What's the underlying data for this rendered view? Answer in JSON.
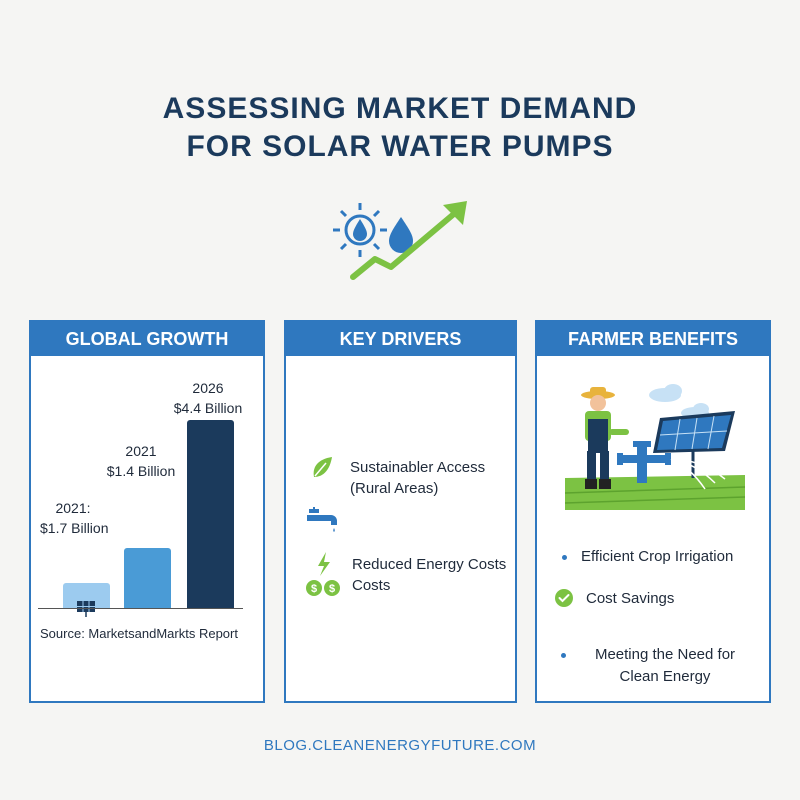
{
  "title": {
    "line1": "ASSESSING MARKET DEMAND",
    "line2": "FOR SOLAR WATER PUMPS"
  },
  "hero_icons": [
    "sun-icon",
    "water-drop-icon",
    "growth-arrow-icon"
  ],
  "panels": {
    "global_growth": {
      "header": "GLOBAL GROWTH",
      "bars": [
        {
          "year": "2021:",
          "value_label": "$1.7 Billion",
          "color": "#9ccbef"
        },
        {
          "year": "2021",
          "value_label": "$1.4 Billion",
          "color": "#4a9bd6"
        },
        {
          "year": "2026",
          "value_label": "$4.4 Billion",
          "color": "#1b3a5c"
        }
      ],
      "chart_values": [
        1.7,
        1.4,
        4.4
      ],
      "source": "Source: MarketsandMarkts Report"
    },
    "key_drivers": {
      "header": "KEY DRIVERS",
      "items": [
        {
          "line1": "Sustainabler Access",
          "line2": "(Rural Areas)",
          "icon": "leaf-icon"
        },
        {
          "line1": "",
          "line2": "",
          "icon": "water-tap-icon"
        },
        {
          "line1": "Reduced Energy Costs",
          "line2": "Costs",
          "icon": "energy-savings-icon"
        }
      ]
    },
    "farmer_benefits": {
      "header": "FARMER BENEFITS",
      "illustration": "farmer-solar-pump-illustration",
      "items": [
        {
          "text": "Efficient Crop Irrigation"
        },
        {
          "text": "Cost Savings"
        },
        {
          "line1": "Meeting the Need for",
          "line2": "Clean Energy"
        }
      ]
    }
  },
  "footer": "BLOG.CLEANENERGYFUTURE.COM",
  "colors": {
    "brand_blue": "#2f78bf",
    "navy": "#1b3a5c",
    "green": "#7cc243"
  }
}
